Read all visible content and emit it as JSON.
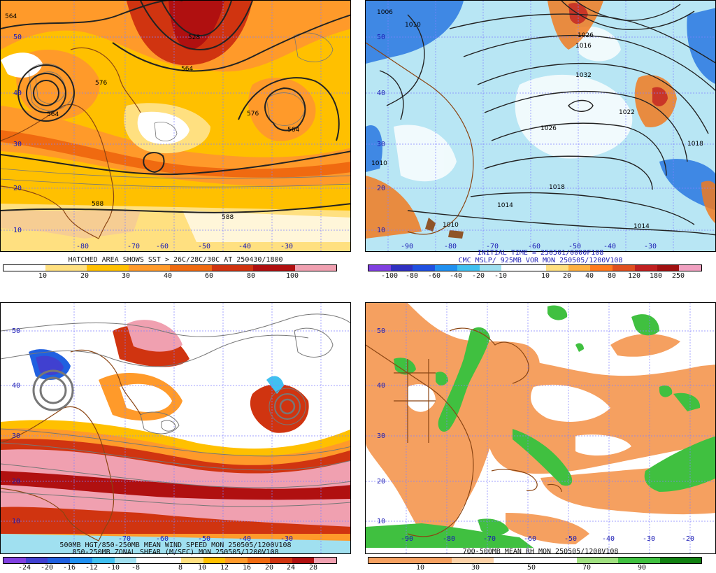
{
  "panels": {
    "tl": {
      "title": "HATCHED AREA SHOWS SST > 26C/28C/30C AT 250430/1800",
      "lat_labels": [
        "50",
        "40",
        "30",
        "20",
        "10"
      ],
      "lon_labels": [
        "-80",
        "-70",
        "-60",
        "-50",
        "-40",
        "-30"
      ],
      "contour_labels": [
        "564",
        "528",
        "576",
        "564",
        "564",
        "576",
        "564",
        "588",
        "588"
      ],
      "colorbar": {
        "colors": [
          "#ffffff",
          "#ffe080",
          "#ffc000",
          "#ff9a2a",
          "#f06a10",
          "#d03410",
          "#b01010",
          "#f0a0b0"
        ],
        "ticks": [
          "10",
          "20",
          "30",
          "40",
          "60",
          "80",
          "100"
        ]
      }
    },
    "tr": {
      "title_line1": "INITIAL TIME = 250501/0000F108",
      "title_line2": "CMC MSLP/ 925MB VOR MON 250505/1200V108",
      "lat_labels": [
        "50",
        "40",
        "30",
        "20",
        "10"
      ],
      "lon_labels": [
        "-90",
        "-80",
        "-70",
        "-60",
        "-50",
        "-40",
        "-30"
      ],
      "contour_labels": [
        "1006",
        "1010",
        "1016",
        "1026",
        "1032",
        "1026",
        "1022",
        "1018",
        "1018",
        "1014",
        "1014",
        "1010",
        "1010"
      ],
      "colorbar": {
        "colors": [
          "#8040e0",
          "#3030c0",
          "#2050e0",
          "#2090f0",
          "#40c0f0",
          "#a0e0f0",
          "#ffffff",
          "#ffffff",
          "#ffe080",
          "#ffb040",
          "#ff7a20",
          "#e05020",
          "#c02020",
          "#a01010",
          "#f0a0c0"
        ],
        "ticks": [
          "-100",
          "-80",
          "-60",
          "-40",
          "-20",
          "-10",
          "10",
          "20",
          "40",
          "80",
          "120",
          "180",
          "250"
        ]
      }
    },
    "bl": {
      "title_line1": "500MB HGT/850-250MB MEAN WIND SPEED MON 250505/1200V108",
      "title_line2": "850-250MB ZONAL SHEAR (M/SEC) MON 250505/1200V108",
      "lat_labels": [
        "50",
        "40",
        "30",
        "20",
        "10"
      ],
      "lon_labels": [
        "-70",
        "-60",
        "-50",
        "-40",
        "-30"
      ],
      "colorbar": {
        "colors": [
          "#8040e0",
          "#4040d0",
          "#2060e0",
          "#2090f0",
          "#40c0f0",
          "#a0e0f0",
          "#ffffff",
          "#ffffff",
          "#ffe080",
          "#ffc000",
          "#ff9a2a",
          "#f06a10",
          "#d03410",
          "#b01010",
          "#f0a0b0"
        ],
        "ticks": [
          "-24",
          "-20",
          "-16",
          "-12",
          "-10",
          "-8",
          "8",
          "10",
          "12",
          "16",
          "20",
          "24",
          "28"
        ]
      }
    },
    "br": {
      "title": "700-500MB MEAN RH MON 250505/1200V108",
      "lat_labels": [
        "50",
        "40",
        "30",
        "20",
        "10"
      ],
      "lon_labels": [
        "-90",
        "-80",
        "-70",
        "-60",
        "-50",
        "-40",
        "-30",
        "-20"
      ],
      "colorbar": {
        "colors": [
          "#f5a060",
          "#f5a060",
          "#fcd2a8",
          "#ffffff",
          "#ffffff",
          "#a0e080",
          "#40c040",
          "#108010"
        ],
        "ticks": [
          "10",
          "30",
          "50",
          "70",
          "90"
        ]
      }
    }
  }
}
